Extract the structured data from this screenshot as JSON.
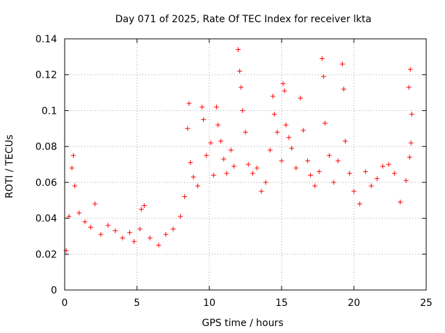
{
  "chart_data": {
    "type": "scatter",
    "title": "Day 071 of 2025, Rate Of TEC Index for receiver lkta",
    "xlabel": "GPS time / hours",
    "ylabel": "ROTI / TECUs",
    "xlim": [
      0,
      25
    ],
    "ylim": [
      0,
      0.14
    ],
    "xticks": [
      0,
      5,
      10,
      15,
      20,
      25
    ],
    "xtick_labels": [
      "0",
      "5",
      "10",
      "15",
      "20",
      "25"
    ],
    "yticks": [
      0,
      0.02,
      0.04,
      0.06,
      0.08,
      0.1,
      0.12,
      0.14
    ],
    "ytick_labels": [
      "0",
      "0.02",
      "0.04",
      "0.06",
      "0.08",
      "0.1",
      "0.12",
      "0.14"
    ],
    "grid": true,
    "marker": "+",
    "color": "#ff0000",
    "series": [
      {
        "name": "ROTI",
        "points": [
          [
            0.1,
            0.022
          ],
          [
            0.3,
            0.041
          ],
          [
            0.5,
            0.068
          ],
          [
            0.6,
            0.075
          ],
          [
            0.7,
            0.058
          ],
          [
            1.0,
            0.043
          ],
          [
            1.4,
            0.038
          ],
          [
            1.8,
            0.035
          ],
          [
            2.1,
            0.048
          ],
          [
            2.5,
            0.031
          ],
          [
            3.0,
            0.036
          ],
          [
            3.5,
            0.033
          ],
          [
            4.0,
            0.029
          ],
          [
            4.5,
            0.032
          ],
          [
            4.8,
            0.027
          ],
          [
            5.2,
            0.034
          ],
          [
            5.3,
            0.045
          ],
          [
            5.5,
            0.047
          ],
          [
            5.9,
            0.029
          ],
          [
            6.5,
            0.025
          ],
          [
            7.0,
            0.031
          ],
          [
            7.5,
            0.034
          ],
          [
            8.0,
            0.041
          ],
          [
            8.3,
            0.052
          ],
          [
            8.5,
            0.09
          ],
          [
            8.6,
            0.104
          ],
          [
            8.7,
            0.071
          ],
          [
            8.9,
            0.063
          ],
          [
            9.2,
            0.058
          ],
          [
            9.5,
            0.102
          ],
          [
            9.6,
            0.095
          ],
          [
            9.8,
            0.075
          ],
          [
            10.1,
            0.082
          ],
          [
            10.3,
            0.064
          ],
          [
            10.5,
            0.102
          ],
          [
            10.6,
            0.092
          ],
          [
            10.8,
            0.083
          ],
          [
            11.0,
            0.073
          ],
          [
            11.2,
            0.065
          ],
          [
            11.5,
            0.078
          ],
          [
            11.7,
            0.069
          ],
          [
            12.0,
            0.134
          ],
          [
            12.1,
            0.122
          ],
          [
            12.2,
            0.113
          ],
          [
            12.3,
            0.1
          ],
          [
            12.5,
            0.088
          ],
          [
            12.7,
            0.07
          ],
          [
            13.0,
            0.065
          ],
          [
            13.3,
            0.068
          ],
          [
            13.6,
            0.055
          ],
          [
            13.9,
            0.06
          ],
          [
            14.2,
            0.078
          ],
          [
            14.4,
            0.108
          ],
          [
            14.5,
            0.098
          ],
          [
            14.7,
            0.088
          ],
          [
            15.0,
            0.072
          ],
          [
            15.1,
            0.115
          ],
          [
            15.2,
            0.111
          ],
          [
            15.3,
            0.092
          ],
          [
            15.5,
            0.085
          ],
          [
            15.7,
            0.079
          ],
          [
            16.0,
            0.068
          ],
          [
            16.3,
            0.107
          ],
          [
            16.5,
            0.089
          ],
          [
            16.8,
            0.072
          ],
          [
            17.0,
            0.064
          ],
          [
            17.3,
            0.058
          ],
          [
            17.6,
            0.066
          ],
          [
            17.8,
            0.129
          ],
          [
            17.9,
            0.119
          ],
          [
            18.0,
            0.093
          ],
          [
            18.3,
            0.075
          ],
          [
            18.6,
            0.06
          ],
          [
            18.9,
            0.072
          ],
          [
            19.2,
            0.126
          ],
          [
            19.3,
            0.112
          ],
          [
            19.4,
            0.083
          ],
          [
            19.7,
            0.065
          ],
          [
            20.0,
            0.055
          ],
          [
            20.4,
            0.048
          ],
          [
            20.8,
            0.066
          ],
          [
            21.2,
            0.058
          ],
          [
            21.6,
            0.062
          ],
          [
            22.0,
            0.069
          ],
          [
            22.4,
            0.07
          ],
          [
            22.8,
            0.065
          ],
          [
            23.2,
            0.049
          ],
          [
            23.6,
            0.061
          ],
          [
            23.8,
            0.113
          ],
          [
            23.9,
            0.123
          ],
          [
            24.0,
            0.098
          ],
          [
            23.95,
            0.082
          ],
          [
            23.85,
            0.074
          ]
        ]
      }
    ]
  }
}
